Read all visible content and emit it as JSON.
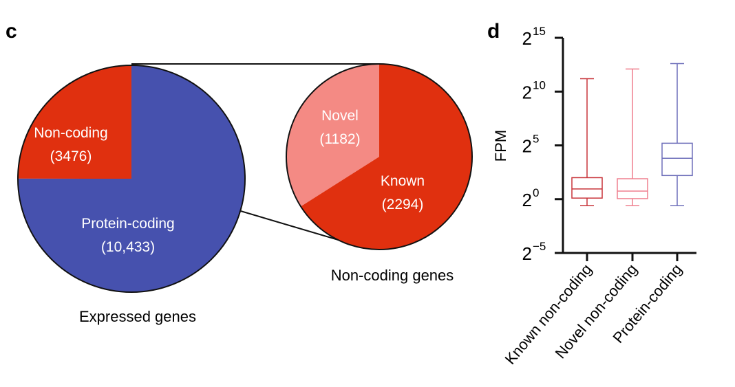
{
  "panel_labels": {
    "c": "c",
    "d": "d"
  },
  "colors": {
    "protein_coding": "#4651ae",
    "non_coding": "#e0300f",
    "novel": "#f48a84",
    "known_box": "#c8343a",
    "novel_box": "#ef7f8e",
    "protein_box": "#6e6fba"
  },
  "chart_data": [
    {
      "type": "pie",
      "title": "Expressed genes",
      "slices": [
        {
          "label": "Non-coding",
          "value_label": "(3476)",
          "value": 3476
        },
        {
          "label": "Protein-coding",
          "value_label": "(10,433)",
          "value": 10433
        }
      ]
    },
    {
      "type": "pie",
      "title": "Non-coding genes",
      "slices": [
        {
          "label": "Novel",
          "value_label": "(1182)",
          "value": 1182
        },
        {
          "label": "Known",
          "value_label": "(2294)",
          "value": 2294
        }
      ]
    },
    {
      "type": "box",
      "ylabel": "FPM",
      "yscale": "log2",
      "ylim_log2": [
        -5,
        15
      ],
      "yticks": [
        {
          "base": "2",
          "exp": "15"
        },
        {
          "base": "2",
          "exp": "10"
        },
        {
          "base": "2",
          "exp": "5"
        },
        {
          "base": "2",
          "exp": "0"
        },
        {
          "base": "2",
          "exp": "−5"
        }
      ],
      "categories": [
        "Known non-coding",
        "Novel non-coding",
        "Protein-coding"
      ],
      "boxes_log2": [
        {
          "min": -0.6,
          "q1": 0.1,
          "median": 0.95,
          "q3": 2.0,
          "max": 11.2
        },
        {
          "min": -0.6,
          "q1": 0.05,
          "median": 0.75,
          "q3": 1.9,
          "max": 12.1
        },
        {
          "min": -0.6,
          "q1": 2.2,
          "median": 3.8,
          "q3": 5.2,
          "max": 12.6
        }
      ]
    }
  ]
}
